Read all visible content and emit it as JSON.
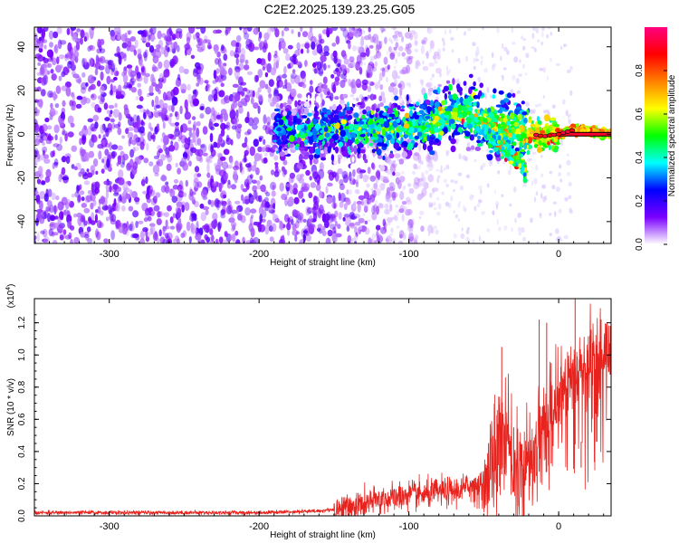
{
  "title": "C2E2.2025.139.23.25.G05",
  "chart_data": [
    {
      "type": "heatmap",
      "xlabel": "Height of straight line (km)",
      "ylabel": "Frequency (Hz)",
      "xlim": [
        -350,
        35
      ],
      "ylim": [
        -50,
        49
      ],
      "xticks": [
        -300,
        -200,
        -100,
        0
      ],
      "yticks": [
        -40,
        -20,
        0,
        20,
        40
      ],
      "colorbar": {
        "label": "Normalized spectral amplitude",
        "range": [
          0,
          1
        ],
        "ticks": [
          "0.0",
          "0.2",
          "0.4",
          "0.6",
          "0.8"
        ],
        "tick_values": [
          0,
          0.2,
          0.4,
          0.6,
          0.8
        ],
        "colors": [
          "#ffffff",
          "#7a00ff",
          "#0000ff",
          "#00ffff",
          "#00ff00",
          "#ffff00",
          "#ff8000",
          "#ff0000",
          "#ff0080"
        ]
      },
      "features": {
        "noise_region_x": [
          -350,
          -140
        ],
        "signal_ridge": [
          {
            "x": -190,
            "f": 2
          },
          {
            "x": -150,
            "f": 2
          },
          {
            "x": -120,
            "f": 2
          },
          {
            "x": -90,
            "f": 3
          },
          {
            "x": -70,
            "f": 10
          },
          {
            "x": -55,
            "f": 8
          },
          {
            "x": -40,
            "f": 5
          },
          {
            "x": -25,
            "f": 1
          },
          {
            "x": -10,
            "f": -1
          },
          {
            "x": 0,
            "f": 0
          },
          {
            "x": 10,
            "f": 2
          },
          {
            "x": 35,
            "f": 0
          }
        ],
        "secondary_branch": [
          {
            "x": -50,
            "f": 2
          },
          {
            "x": -40,
            "f": -5
          },
          {
            "x": -30,
            "f": -10
          },
          {
            "x": -22,
            "f": -17
          }
        ]
      }
    },
    {
      "type": "line",
      "xlabel": "Height of straight line (km)",
      "ylabel": "SNR (10 * v/v)",
      "scale_label": "(x10",
      "scale_exp": "4",
      "scale_suffix": ")",
      "xlim": [
        -350,
        35
      ],
      "ylim": [
        0,
        1.35
      ],
      "xticks": [
        -300,
        -200,
        -100,
        0
      ],
      "yticks": [
        0.0,
        0.2,
        0.4,
        0.6,
        0.8,
        1.0,
        1.2
      ],
      "ytick_labels": [
        "0.0",
        "0.2",
        "0.4",
        "0.6",
        "0.8",
        "1.0",
        "1.2"
      ],
      "series": [
        {
          "color": "#e8231e",
          "points": [
            [
              -350,
              0.02
            ],
            [
              -300,
              0.02
            ],
            [
              -250,
              0.02
            ],
            [
              -200,
              0.02
            ],
            [
              -180,
              0.025
            ],
            [
              -160,
              0.03
            ],
            [
              -140,
              0.05
            ],
            [
              -130,
              0.07
            ],
            [
              -120,
              0.1
            ],
            [
              -110,
              0.11
            ],
            [
              -100,
              0.13
            ],
            [
              -90,
              0.13
            ],
            [
              -80,
              0.15
            ],
            [
              -70,
              0.15
            ],
            [
              -60,
              0.18
            ],
            [
              -50,
              0.22
            ],
            [
              -45,
              0.3
            ],
            [
              -40,
              0.45
            ],
            [
              -37,
              0.55
            ],
            [
              -35,
              0.5
            ],
            [
              -30,
              0.3
            ],
            [
              -25,
              0.25
            ],
            [
              -20,
              0.35
            ],
            [
              -15,
              0.45
            ],
            [
              -12,
              0.6
            ],
            [
              -8,
              0.55
            ],
            [
              -5,
              0.65
            ],
            [
              0,
              0.75
            ],
            [
              5,
              0.8
            ],
            [
              10,
              0.88
            ],
            [
              15,
              0.92
            ],
            [
              20,
              0.97
            ],
            [
              25,
              1.0
            ],
            [
              30,
              1.03
            ],
            [
              35,
              1.05
            ]
          ],
          "spikes": [
            [
              -38,
              1.05
            ],
            [
              -30,
              0.55
            ],
            [
              -13,
              1.22
            ],
            [
              -8,
              1.2
            ],
            [
              -5,
              0.95
            ],
            [
              11,
              1.35
            ],
            [
              15,
              0.3
            ]
          ]
        }
      ]
    }
  ]
}
